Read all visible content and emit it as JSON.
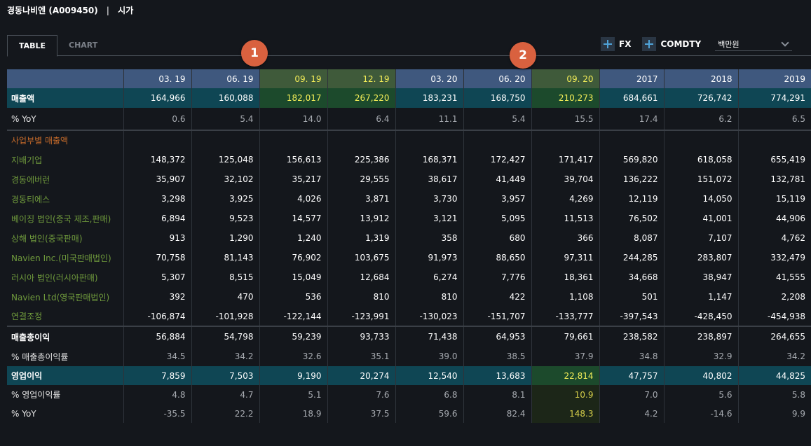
{
  "header": {
    "company": "경동나비엔 (A009450)",
    "separator": "|",
    "section": "시가"
  },
  "tabs": [
    {
      "label": "TABLE",
      "active": true
    },
    {
      "label": "CHART",
      "active": false
    }
  ],
  "toolbar": {
    "fx_label": "FX",
    "comdty_label": "COMDTY",
    "unit_value": "백만원",
    "plus_icon": "plus-icon",
    "dropdown_icon": "chevron-down-icon"
  },
  "markers": [
    "1",
    "2"
  ],
  "colors": {
    "header_bg": "#3f587e",
    "highlight_text": "#f4ee58",
    "band_row_bg": "#0f4654",
    "segment_label": "#6f9a3c",
    "section_label": "#c46a2a",
    "marker_bg": "#d9613f"
  },
  "table": {
    "columns": [
      "03. 19",
      "06. 19",
      "09. 19",
      "12. 19",
      "03. 20",
      "06. 20",
      "09. 20",
      "2017",
      "2018",
      "2019"
    ],
    "highlight_header_columns": [
      2,
      3,
      6
    ],
    "rows": [
      {
        "label": "매출액",
        "type": "rev",
        "highlight": [
          2,
          3,
          6
        ],
        "values": [
          "164,966",
          "160,088",
          "182,017",
          "267,220",
          "183,231",
          "168,750",
          "210,273",
          "684,661",
          "726,742",
          "774,291"
        ]
      },
      {
        "label": "% YoY",
        "type": "pct",
        "highlight": [],
        "values": [
          "0.6",
          "5.4",
          "14.0",
          "6.4",
          "11.1",
          "5.4",
          "15.5",
          "17.4",
          "6.2",
          "6.5"
        ]
      },
      {
        "label": "사업부별 매출액",
        "type": "section",
        "highlight": [],
        "values": [
          "",
          "",
          "",
          "",
          "",
          "",
          "",
          "",
          "",
          ""
        ]
      },
      {
        "label": "지배기업",
        "type": "seg",
        "highlight": [],
        "values": [
          "148,372",
          "125,048",
          "156,613",
          "225,386",
          "168,371",
          "172,427",
          "171,417",
          "569,820",
          "618,058",
          "655,419"
        ]
      },
      {
        "label": "경동에버런",
        "type": "seg",
        "highlight": [],
        "values": [
          "35,907",
          "32,102",
          "35,217",
          "29,555",
          "38,617",
          "41,449",
          "39,704",
          "136,222",
          "151,072",
          "132,781"
        ]
      },
      {
        "label": "경동티에스",
        "type": "seg",
        "highlight": [],
        "values": [
          "3,298",
          "3,925",
          "4,026",
          "3,871",
          "3,730",
          "3,957",
          "4,269",
          "12,119",
          "14,050",
          "15,119"
        ]
      },
      {
        "label": "베이징 법인(중국 제조,판매)",
        "type": "seg",
        "highlight": [],
        "values": [
          "6,894",
          "9,523",
          "14,577",
          "13,912",
          "3,121",
          "5,095",
          "11,513",
          "76,502",
          "41,001",
          "44,906"
        ]
      },
      {
        "label": "상해 법인(중국판매)",
        "type": "seg",
        "highlight": [],
        "values": [
          "913",
          "1,290",
          "1,240",
          "1,319",
          "358",
          "680",
          "366",
          "8,087",
          "7,107",
          "4,762"
        ]
      },
      {
        "label": "Navien Inc.(미국판매법인)",
        "type": "seg",
        "highlight": [],
        "values": [
          "70,758",
          "81,143",
          "76,902",
          "103,675",
          "91,973",
          "88,650",
          "97,311",
          "244,285",
          "283,807",
          "332,479"
        ]
      },
      {
        "label": "러시아 법인(러시아판매)",
        "type": "seg",
        "highlight": [],
        "values": [
          "5,307",
          "8,515",
          "15,049",
          "12,684",
          "6,274",
          "7,776",
          "18,361",
          "34,668",
          "38,947",
          "41,555"
        ]
      },
      {
        "label": "Navien Ltd(영국판매법인)",
        "type": "seg",
        "highlight": [],
        "values": [
          "392",
          "470",
          "536",
          "810",
          "810",
          "422",
          "1,108",
          "501",
          "1,147",
          "2,208"
        ]
      },
      {
        "label": "연결조정",
        "type": "seg",
        "highlight": [],
        "values": [
          "-106,874",
          "-101,928",
          "-122,144",
          "-123,991",
          "-130,023",
          "-151,707",
          "-133,777",
          "-397,543",
          "-428,450",
          "-454,938"
        ]
      },
      {
        "label": "매출총이익",
        "type": "bold",
        "highlight": [],
        "values": [
          "56,884",
          "54,798",
          "59,239",
          "93,733",
          "71,438",
          "64,953",
          "79,661",
          "238,582",
          "238,897",
          "264,655"
        ]
      },
      {
        "label": "% 매출총이익률",
        "type": "sub",
        "highlight": [],
        "values": [
          "34.5",
          "34.2",
          "32.6",
          "35.1",
          "39.0",
          "38.5",
          "37.9",
          "34.8",
          "32.9",
          "34.2"
        ]
      },
      {
        "label": "영업이익",
        "type": "op",
        "highlight": [
          6
        ],
        "values": [
          "7,859",
          "7,503",
          "9,190",
          "20,274",
          "12,540",
          "13,683",
          "22,814",
          "47,757",
          "40,802",
          "44,825"
        ]
      },
      {
        "label": "% 영업이익률",
        "type": "opsub",
        "highlight": [
          6
        ],
        "values": [
          "4.8",
          "4.7",
          "5.1",
          "7.6",
          "6.8",
          "8.1",
          "10.9",
          "7.0",
          "5.6",
          "5.8"
        ]
      },
      {
        "label": "% YoY",
        "type": "opsub",
        "highlight": [
          6
        ],
        "values": [
          "-35.5",
          "22.2",
          "18.9",
          "37.5",
          "59.6",
          "82.4",
          "148.3",
          "4.2",
          "-14.6",
          "9.9"
        ]
      }
    ]
  }
}
